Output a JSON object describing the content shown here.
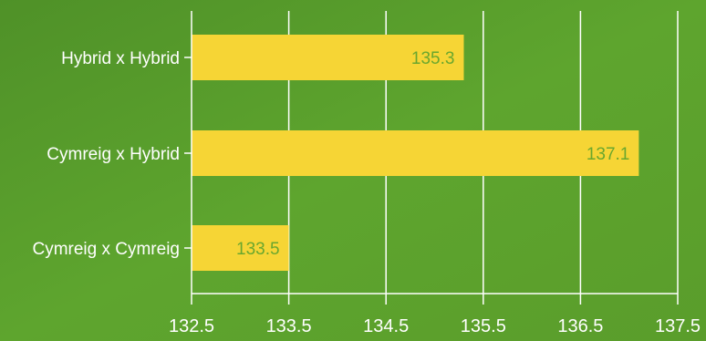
{
  "chart_data": {
    "type": "bar",
    "orientation": "horizontal",
    "categories": [
      "Hybrid x Hybrid",
      "Cymreig x Hybrid",
      "Cymreig x Cymreig"
    ],
    "values": [
      135.3,
      137.1,
      133.5
    ],
    "data_labels": [
      "135.3",
      "137.1",
      "133.5"
    ],
    "xlim": [
      132.5,
      137.5
    ],
    "xticks": [
      132.5,
      133.5,
      134.5,
      135.5,
      136.5,
      137.5
    ],
    "xtick_labels": [
      "132.5",
      "133.5",
      "134.5",
      "135.5",
      "136.5",
      "137.5"
    ],
    "title": "",
    "xlabel": "",
    "ylabel": "",
    "grid": "vertical gridlines on",
    "legend": "none",
    "colors": {
      "background": "#5a9a2a",
      "bar": "#f6d535",
      "data_label": "#6aa72e",
      "gridline": "#ffffff",
      "text": "#ffffff"
    }
  }
}
